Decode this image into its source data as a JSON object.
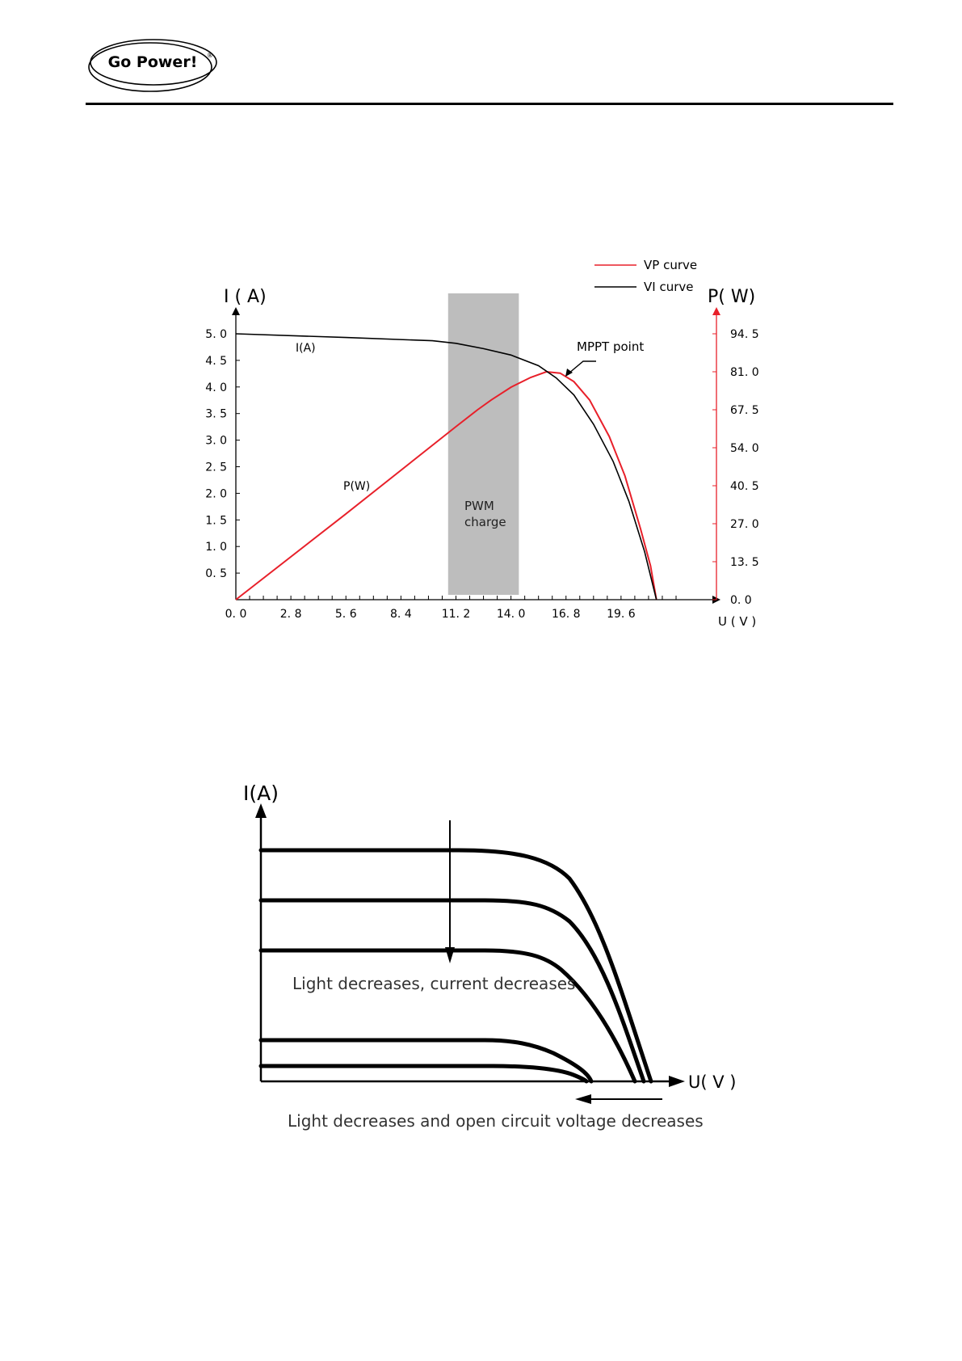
{
  "header": {
    "logo_text": "Go Power!",
    "logo_mark": "®"
  },
  "chart_data": [
    {
      "type": "line",
      "y_left_label": "I ( A)",
      "y_right_label": "P( W)",
      "x_unit_label": "U ( V )",
      "x_ticks": [
        "0. 0",
        "2. 8",
        "5. 6",
        "8. 4",
        "11. 2",
        "14. 0",
        "16. 8",
        "19. 6"
      ],
      "x_tick_values": [
        0,
        2.8,
        5.6,
        8.4,
        11.2,
        14.0,
        16.8,
        19.6
      ],
      "y_left_ticks": [
        "5. 0",
        "4. 5",
        "4. 0",
        "3. 5",
        "3. 0",
        "2. 5",
        "2. 0",
        "1. 5",
        "1. 0",
        "0. 5"
      ],
      "y_left_tick_values": [
        5.0,
        4.5,
        4.0,
        3.5,
        3.0,
        2.5,
        2.0,
        1.5,
        1.0,
        0.5
      ],
      "y_right_ticks": [
        "94. 5",
        "81. 0",
        "67. 5",
        "54. 0",
        "40. 5",
        "27. 0",
        "13. 5",
        "0. 0"
      ],
      "y_right_tick_values": [
        94.5,
        81.0,
        67.5,
        54.0,
        40.5,
        27.0,
        13.5,
        0.0
      ],
      "xlim": [
        0,
        22.4
      ],
      "ylim_left": [
        0,
        5.0
      ],
      "ylim_right": [
        0,
        94.5
      ],
      "legend": [
        {
          "label": "VP curve",
          "color": "#e8202a"
        },
        {
          "label": "VI curve",
          "color": "#000000"
        }
      ],
      "series": [
        {
          "name": "I(A)",
          "color": "#000000",
          "axis": "left",
          "x": [
            0,
            5.6,
            10.0,
            11.2,
            12.6,
            14.0,
            15.4,
            16.3,
            17.2,
            18.2,
            19.2,
            20.0,
            20.8,
            21.4
          ],
          "y": [
            5.0,
            4.93,
            4.87,
            4.82,
            4.72,
            4.6,
            4.4,
            4.17,
            3.85,
            3.3,
            2.6,
            1.85,
            0.9,
            0.0
          ]
        },
        {
          "name": "P(W)",
          "color": "#e8202a",
          "axis": "right",
          "x": [
            0,
            5.6,
            11.2,
            12.3,
            13.0,
            14.0,
            15.0,
            15.8,
            16.5,
            17.2,
            18.0,
            19.0,
            19.8,
            20.6,
            21.1,
            21.4
          ],
          "y": [
            0,
            30.5,
            61.5,
            67.5,
            71.0,
            75.5,
            79.0,
            81.0,
            80.5,
            77.5,
            71.0,
            58.0,
            44.0,
            25.0,
            12.0,
            0
          ]
        }
      ],
      "shaded_region": {
        "label_line1": "PWM",
        "label_line2": "charge",
        "x_from": 10.8,
        "x_to": 14.4
      },
      "annotations": {
        "mppt": "MPPT point",
        "mppt_x": 15.8,
        "mppt_y_right": 81.0,
        "series_label_i": "I(A)",
        "series_label_p": "P(W)"
      }
    },
    {
      "type": "line",
      "y_label": "I(A)",
      "x_label": "U( V )",
      "note_current": "Light decreases, current decreases",
      "note_voltage": "Light decreases and open circuit voltage decreases"
    }
  ]
}
